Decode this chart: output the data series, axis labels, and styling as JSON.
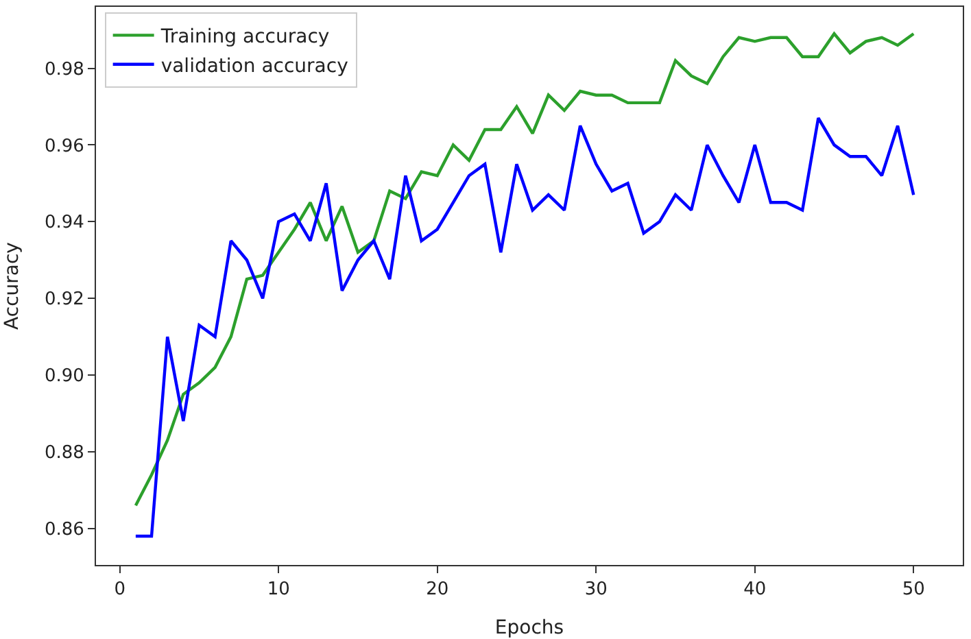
{
  "chart_data": {
    "type": "line",
    "xlabel": "Epochs",
    "ylabel": "Accuracy",
    "legend": "top left",
    "marker": "none",
    "line_style": "solid",
    "x": [
      1,
      2,
      3,
      4,
      5,
      6,
      7,
      8,
      9,
      10,
      11,
      12,
      13,
      14,
      15,
      16,
      17,
      18,
      19,
      20,
      21,
      22,
      23,
      24,
      25,
      26,
      27,
      28,
      29,
      30,
      31,
      32,
      33,
      34,
      35,
      36,
      37,
      38,
      39,
      40,
      41,
      42,
      43,
      44,
      45,
      46,
      47,
      48,
      49,
      50
    ],
    "xlim": [
      -1.5,
      53.1
    ],
    "xticks": [
      0,
      10,
      20,
      30,
      40,
      50
    ],
    "ylim": [
      0.8505,
      0.996
    ],
    "yticks": [
      {
        "value": 0.86,
        "label": "0.86"
      },
      {
        "value": 0.88,
        "label": "0.88"
      },
      {
        "value": 0.9,
        "label": "0.90"
      },
      {
        "value": 0.92,
        "label": "0.92"
      },
      {
        "value": 0.94,
        "label": "0.94"
      },
      {
        "value": 0.96,
        "label": "0.96"
      },
      {
        "value": 0.98,
        "label": "0.98"
      }
    ],
    "series": [
      {
        "name": "Training accuracy",
        "color": "#2ca02c",
        "values": [
          0.866,
          0.874,
          0.883,
          0.895,
          0.898,
          0.902,
          0.91,
          0.925,
          0.926,
          0.932,
          0.938,
          0.945,
          0.935,
          0.944,
          0.932,
          0.935,
          0.948,
          0.946,
          0.953,
          0.952,
          0.96,
          0.956,
          0.964,
          0.964,
          0.97,
          0.963,
          0.973,
          0.969,
          0.974,
          0.973,
          0.973,
          0.971,
          0.971,
          0.971,
          0.982,
          0.978,
          0.976,
          0.983,
          0.988,
          0.987,
          0.988,
          0.988,
          0.983,
          0.983,
          0.989,
          0.984,
          0.987,
          0.988,
          0.986,
          0.989
        ]
      },
      {
        "name": "validation accuracy",
        "color": "#0000ff",
        "values": [
          0.858,
          0.858,
          0.91,
          0.888,
          0.913,
          0.91,
          0.935,
          0.93,
          0.92,
          0.94,
          0.942,
          0.935,
          0.95,
          0.922,
          0.93,
          0.935,
          0.925,
          0.952,
          0.935,
          0.938,
          0.945,
          0.952,
          0.955,
          0.932,
          0.955,
          0.943,
          0.947,
          0.943,
          0.965,
          0.955,
          0.948,
          0.95,
          0.937,
          0.94,
          0.947,
          0.943,
          0.96,
          0.952,
          0.945,
          0.96,
          0.945,
          0.945,
          0.943,
          0.967,
          0.96,
          0.957,
          0.957,
          0.952,
          0.965,
          0.947
        ]
      }
    ]
  }
}
